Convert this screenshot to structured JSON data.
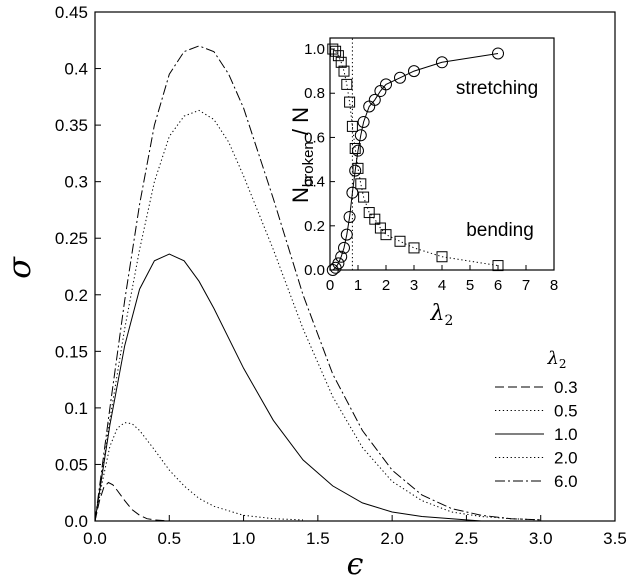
{
  "chart_data": [
    {
      "type": "line",
      "xlabel": "ϵ",
      "ylabel": "σ",
      "xlim": [
        0,
        3.5
      ],
      "ylim": [
        0,
        0.45
      ],
      "x_ticks": [
        "0.0",
        "0.5",
        "1.0",
        "1.5",
        "2.0",
        "2.5",
        "3.0",
        "3.5"
      ],
      "y_ticks": [
        "0.0",
        "0.05",
        "0.1",
        "0.15",
        "0.2",
        "0.25",
        "0.3",
        "0.35",
        "0.4",
        "0.45"
      ],
      "legend_title": "λ2",
      "legend_placement": "right",
      "series": [
        {
          "name": "0.3",
          "dash": "long-dash",
          "x": [
            0,
            0.03,
            0.06,
            0.09,
            0.12,
            0.15,
            0.2,
            0.25,
            0.3,
            0.35,
            0.4,
            0.5,
            0.6
          ],
          "y": [
            0,
            0.018,
            0.03,
            0.034,
            0.032,
            0.027,
            0.018,
            0.01,
            0.005,
            0.002,
            0.001,
            0,
            0
          ]
        },
        {
          "name": "0.5",
          "dash": "dotted",
          "x": [
            0,
            0.05,
            0.1,
            0.15,
            0.2,
            0.25,
            0.3,
            0.4,
            0.5,
            0.6,
            0.7,
            0.8,
            1.0,
            1.2,
            1.4
          ],
          "y": [
            0,
            0.035,
            0.066,
            0.082,
            0.087,
            0.086,
            0.08,
            0.063,
            0.045,
            0.031,
            0.02,
            0.013,
            0.005,
            0.002,
            0.001
          ]
        },
        {
          "name": "1.0",
          "dash": "solid",
          "x": [
            0,
            0.1,
            0.2,
            0.3,
            0.4,
            0.5,
            0.6,
            0.7,
            0.8,
            1.0,
            1.2,
            1.4,
            1.6,
            1.8,
            2.0,
            2.2,
            2.4,
            2.6
          ],
          "y": [
            0,
            0.085,
            0.155,
            0.205,
            0.23,
            0.236,
            0.23,
            0.212,
            0.188,
            0.135,
            0.089,
            0.054,
            0.031,
            0.016,
            0.008,
            0.004,
            0.002,
            0
          ]
        },
        {
          "name": "2.0",
          "dash": "dotted",
          "x": [
            0,
            0.1,
            0.2,
            0.3,
            0.4,
            0.5,
            0.6,
            0.7,
            0.8,
            0.9,
            1.0,
            1.2,
            1.4,
            1.6,
            1.8,
            2.0,
            2.2,
            2.4,
            2.6,
            2.8,
            3.0
          ],
          "y": [
            0,
            0.09,
            0.17,
            0.24,
            0.3,
            0.34,
            0.358,
            0.363,
            0.355,
            0.335,
            0.305,
            0.24,
            0.17,
            0.11,
            0.065,
            0.035,
            0.018,
            0.008,
            0.004,
            0.002,
            0.001
          ]
        },
        {
          "name": "6.0",
          "dash": "dash-dot",
          "x": [
            0,
            0.1,
            0.2,
            0.3,
            0.4,
            0.5,
            0.6,
            0.7,
            0.8,
            0.9,
            1.0,
            1.2,
            1.4,
            1.6,
            1.8,
            2.0,
            2.2,
            2.4,
            2.6,
            2.8,
            3.0
          ],
          "y": [
            0,
            0.1,
            0.195,
            0.28,
            0.35,
            0.395,
            0.415,
            0.42,
            0.415,
            0.395,
            0.365,
            0.285,
            0.2,
            0.13,
            0.08,
            0.045,
            0.023,
            0.011,
            0.005,
            0.002,
            0.001
          ]
        }
      ]
    },
    {
      "type": "scatter",
      "xlabel": "λ2",
      "ylabel": "Nbroken / N",
      "xlim": [
        0,
        8
      ],
      "ylim": [
        0,
        1.05
      ],
      "x_ticks": [
        "0",
        "1",
        "2",
        "3",
        "4",
        "5",
        "6",
        "7",
        "8"
      ],
      "y_ticks": [
        "0.0",
        "0.2",
        "0.4",
        "0.6",
        "0.8",
        "1.0"
      ],
      "vline_x": 0.8,
      "annotations": [
        "stretching",
        "bending"
      ],
      "series": [
        {
          "name": "stretching",
          "marker": "circle",
          "line": "solid",
          "x": [
            0.1,
            0.2,
            0.3,
            0.4,
            0.5,
            0.6,
            0.7,
            0.8,
            0.9,
            1.0,
            1.1,
            1.2,
            1.4,
            1.6,
            1.8,
            2.0,
            2.5,
            3.0,
            4.0,
            6.0
          ],
          "y": [
            0.0,
            0.01,
            0.03,
            0.06,
            0.1,
            0.16,
            0.24,
            0.35,
            0.45,
            0.54,
            0.61,
            0.67,
            0.74,
            0.77,
            0.81,
            0.84,
            0.87,
            0.9,
            0.94,
            0.98
          ]
        },
        {
          "name": "bending",
          "marker": "square",
          "line": "dotted",
          "x": [
            0.1,
            0.2,
            0.3,
            0.4,
            0.5,
            0.6,
            0.7,
            0.8,
            0.9,
            1.0,
            1.1,
            1.2,
            1.4,
            1.6,
            1.8,
            2.0,
            2.5,
            3.0,
            4.0,
            6.0
          ],
          "y": [
            1.0,
            0.99,
            0.97,
            0.94,
            0.9,
            0.84,
            0.76,
            0.65,
            0.55,
            0.46,
            0.39,
            0.33,
            0.26,
            0.23,
            0.19,
            0.16,
            0.13,
            0.1,
            0.06,
            0.02
          ]
        }
      ]
    }
  ]
}
